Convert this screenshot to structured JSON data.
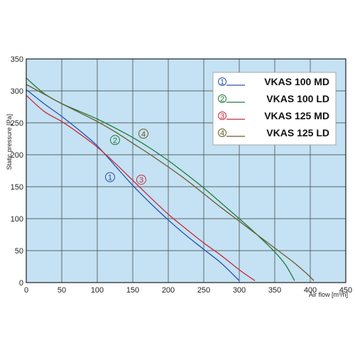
{
  "chart_data": {
    "type": "line",
    "title": "",
    "xlabel": "Air flow [m³/h]",
    "ylabel": "Static pressure [Pa]",
    "xlim": [
      0,
      450
    ],
    "ylim": [
      0,
      350
    ],
    "x_ticks": [
      "0",
      "50",
      "100",
      "150",
      "200",
      "250",
      "300",
      "350",
      "400",
      "450"
    ],
    "y_ticks": [
      "0",
      "50",
      "100",
      "150",
      "200",
      "250",
      "300",
      "350"
    ],
    "grid": true,
    "legend_position": "top-right",
    "background": "#c4e2f3",
    "series": [
      {
        "name": "VKAS 100 MD",
        "marker": "1",
        "color": "#2a4fb0",
        "points": [
          [
            0,
            302
          ],
          [
            25,
            280
          ],
          [
            50,
            260
          ],
          [
            75,
            238
          ],
          [
            100,
            214
          ],
          [
            125,
            183
          ],
          [
            150,
            152
          ],
          [
            175,
            124
          ],
          [
            200,
            98
          ],
          [
            225,
            74
          ],
          [
            250,
            52
          ],
          [
            275,
            30
          ],
          [
            300,
            3
          ]
        ]
      },
      {
        "name": "VKAS 100 LD",
        "marker": "2",
        "color": "#1f7a3c",
        "points": [
          [
            0,
            320
          ],
          [
            25,
            296
          ],
          [
            50,
            280
          ],
          [
            75,
            268
          ],
          [
            100,
            256
          ],
          [
            125,
            242
          ],
          [
            150,
            227
          ],
          [
            175,
            210
          ],
          [
            200,
            191
          ],
          [
            225,
            170
          ],
          [
            250,
            148
          ],
          [
            275,
            124
          ],
          [
            300,
            100
          ],
          [
            325,
            75
          ],
          [
            350,
            48
          ],
          [
            365,
            28
          ],
          [
            378,
            3
          ]
        ]
      },
      {
        "name": "VKAS 125 MD",
        "marker": "3",
        "color": "#c8293a",
        "points": [
          [
            0,
            293
          ],
          [
            25,
            268
          ],
          [
            50,
            252
          ],
          [
            75,
            233
          ],
          [
            100,
            212
          ],
          [
            125,
            187
          ],
          [
            150,
            160
          ],
          [
            175,
            133
          ],
          [
            200,
            107
          ],
          [
            225,
            84
          ],
          [
            250,
            62
          ],
          [
            275,
            42
          ],
          [
            300,
            20
          ],
          [
            322,
            3
          ]
        ]
      },
      {
        "name": "VKAS 125 LD",
        "marker": "4",
        "color": "#6b5a2a",
        "points": [
          [
            0,
            310
          ],
          [
            25,
            295
          ],
          [
            50,
            280
          ],
          [
            75,
            266
          ],
          [
            100,
            252
          ],
          [
            125,
            236
          ],
          [
            150,
            218
          ],
          [
            175,
            200
          ],
          [
            200,
            181
          ],
          [
            225,
            161
          ],
          [
            250,
            139
          ],
          [
            275,
            117
          ],
          [
            300,
            96
          ],
          [
            325,
            75
          ],
          [
            350,
            54
          ],
          [
            375,
            33
          ],
          [
            395,
            14
          ],
          [
            405,
            3
          ]
        ]
      }
    ],
    "annotations": [
      {
        "marker": "1",
        "series": "VKAS 100 MD",
        "x": 118,
        "y": 165
      },
      {
        "marker": "2",
        "series": "VKAS 100 LD",
        "x": 125,
        "y": 223
      },
      {
        "marker": "3",
        "series": "VKAS 125 MD",
        "x": 162,
        "y": 161
      },
      {
        "marker": "4",
        "series": "VKAS 125 LD",
        "x": 165,
        "y": 233
      }
    ]
  }
}
